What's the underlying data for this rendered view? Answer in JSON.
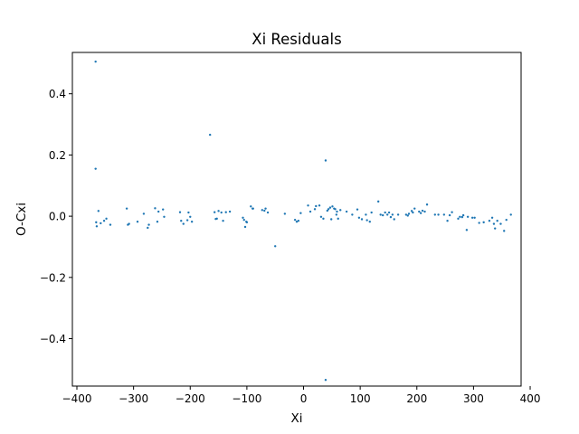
{
  "chart_data": {
    "type": "scatter",
    "title": "Xi Residuals",
    "xlabel": "Xi",
    "ylabel": "O-Cxi",
    "xlim": [
      -408,
      384
    ],
    "ylim": [
      -0.555,
      0.535
    ],
    "xticks": [
      -400,
      -300,
      -200,
      -100,
      0,
      100,
      200,
      300,
      400
    ],
    "xtick_labels": [
      "−400",
      "−300",
      "−200",
      "−100",
      "0",
      "100",
      "200",
      "300",
      "400"
    ],
    "yticks": [
      -0.4,
      -0.2,
      0.0,
      0.2,
      0.4
    ],
    "ytick_labels": [
      "−0.4",
      "−0.2",
      "0.0",
      "0.2",
      "0.4"
    ],
    "grid": false,
    "marker_color": "#1f77b4",
    "series": [
      {
        "points": [
          [
            -367,
            0.505
          ],
          [
            -367,
            0.155
          ],
          [
            -366,
            -0.02
          ],
          [
            -365,
            -0.033
          ],
          [
            -362,
            0.017
          ],
          [
            -358,
            -0.023
          ],
          [
            -352,
            -0.015
          ],
          [
            -348,
            -0.008
          ],
          [
            -341,
            -0.028
          ],
          [
            -312,
            0.025
          ],
          [
            -310,
            -0.028
          ],
          [
            -308,
            -0.025
          ],
          [
            -293,
            -0.018
          ],
          [
            -282,
            0.008
          ],
          [
            -275,
            -0.038
          ],
          [
            -273,
            -0.028
          ],
          [
            -262,
            0.026
          ],
          [
            -258,
            -0.018
          ],
          [
            -256,
            0.015
          ],
          [
            -248,
            0.022
          ],
          [
            -246,
            -0.002
          ],
          [
            -218,
            0.013
          ],
          [
            -216,
            -0.015
          ],
          [
            -212,
            -0.025
          ],
          [
            -205,
            -0.013
          ],
          [
            -203,
            0.012
          ],
          [
            -200,
            -0.002
          ],
          [
            -197,
            -0.018
          ],
          [
            -165,
            0.266
          ],
          [
            -157,
            0.013
          ],
          [
            -155,
            -0.009
          ],
          [
            -153,
            -0.008
          ],
          [
            -150,
            0.017
          ],
          [
            -145,
            0.012
          ],
          [
            -142,
            -0.015
          ],
          [
            -137,
            0.013
          ],
          [
            -130,
            0.015
          ],
          [
            -107,
            -0.005
          ],
          [
            -105,
            -0.012
          ],
          [
            -103,
            -0.035
          ],
          [
            -101,
            -0.018
          ],
          [
            -100,
            -0.02
          ],
          [
            -93,
            0.032
          ],
          [
            -90,
            0.025
          ],
          [
            -89,
            0.025
          ],
          [
            -73,
            0.02
          ],
          [
            -69,
            0.018
          ],
          [
            -67,
            0.025
          ],
          [
            -63,
            0.012
          ],
          [
            -50,
            -0.098
          ],
          [
            -33,
            0.008
          ],
          [
            -15,
            -0.012
          ],
          [
            -12,
            -0.018
          ],
          [
            -9,
            -0.015
          ],
          [
            -5,
            0.01
          ],
          [
            8,
            0.035
          ],
          [
            12,
            0.015
          ],
          [
            20,
            0.023
          ],
          [
            22,
            0.033
          ],
          [
            28,
            0.035
          ],
          [
            31,
            -0.002
          ],
          [
            35,
            -0.008
          ],
          [
            39,
            0.182
          ],
          [
            39,
            -0.535
          ],
          [
            42,
            0.018
          ],
          [
            44,
            0.023
          ],
          [
            47,
            0.028
          ],
          [
            49,
            -0.01
          ],
          [
            51,
            0.032
          ],
          [
            54,
            0.025
          ],
          [
            56,
            0.023
          ],
          [
            58,
            0.005
          ],
          [
            59,
            0.015
          ],
          [
            61,
            -0.008
          ],
          [
            65,
            0.02
          ],
          [
            76,
            0.015
          ],
          [
            86,
            0.005
          ],
          [
            95,
            0.022
          ],
          [
            98,
            -0.005
          ],
          [
            103,
            -0.01
          ],
          [
            110,
            0.005
          ],
          [
            112,
            -0.013
          ],
          [
            117,
            -0.018
          ],
          [
            120,
            0.012
          ],
          [
            132,
            0.048
          ],
          [
            136,
            0.005
          ],
          [
            140,
            0.003
          ],
          [
            144,
            0.012
          ],
          [
            148,
            0.005
          ],
          [
            151,
            0.012
          ],
          [
            154,
            -0.003
          ],
          [
            157,
            0.005
          ],
          [
            160,
            -0.01
          ],
          [
            167,
            0.005
          ],
          [
            181,
            0.005
          ],
          [
            184,
            0.002
          ],
          [
            186,
            0.008
          ],
          [
            191,
            0.017
          ],
          [
            193,
            0.012
          ],
          [
            196,
            0.025
          ],
          [
            204,
            0.015
          ],
          [
            207,
            0.01
          ],
          [
            210,
            0.018
          ],
          [
            214,
            0.015
          ],
          [
            218,
            0.038
          ],
          [
            232,
            0.005
          ],
          [
            238,
            0.005
          ],
          [
            248,
            0.005
          ],
          [
            254,
            -0.015
          ],
          [
            258,
            0.003
          ],
          [
            262,
            0.013
          ],
          [
            273,
            -0.008
          ],
          [
            276,
            -0.002
          ],
          [
            280,
            -0.003
          ],
          [
            282,
            0.003
          ],
          [
            288,
            -0.045
          ],
          [
            290,
            -0.002
          ],
          [
            298,
            -0.005
          ],
          [
            302,
            -0.005
          ],
          [
            310,
            -0.022
          ],
          [
            318,
            -0.02
          ],
          [
            328,
            -0.015
          ],
          [
            333,
            -0.005
          ],
          [
            336,
            -0.025
          ],
          [
            338,
            -0.04
          ],
          [
            342,
            -0.015
          ],
          [
            348,
            -0.025
          ],
          [
            354,
            -0.048
          ],
          [
            358,
            -0.012
          ],
          [
            366,
            0.005
          ]
        ]
      }
    ]
  }
}
